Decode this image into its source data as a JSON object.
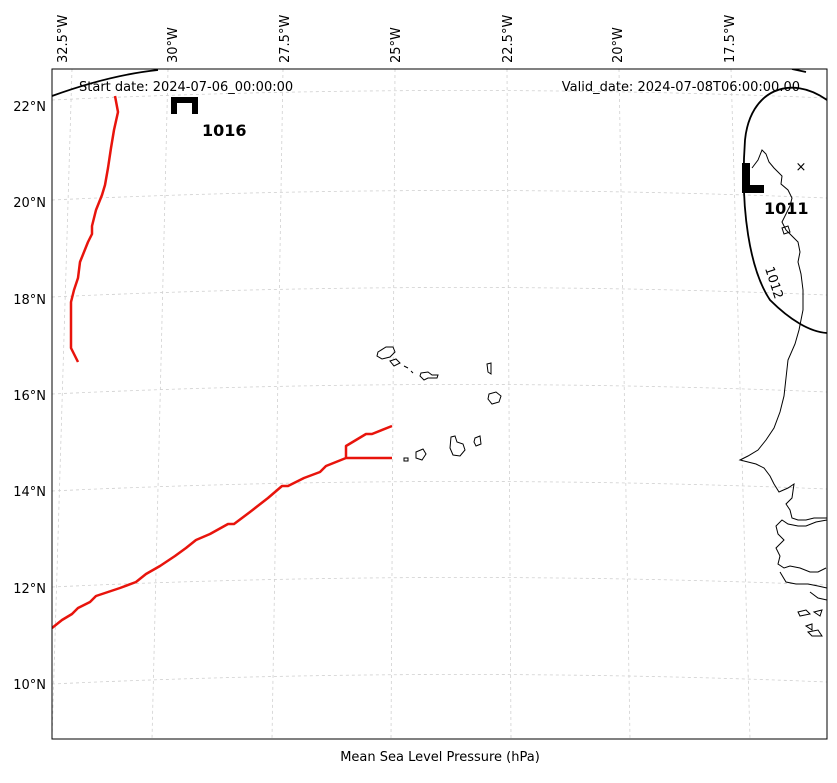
{
  "header": {
    "start_date": "Start date: 2024-07-06_00:00:00",
    "valid_date": "Valid_date: 2024-07-08T06:00:00.00"
  },
  "footer": {
    "caption": "Mean Sea Level Pressure (hPa)"
  },
  "axes": {
    "longitude_labels": [
      "32.5°W",
      "30°W",
      "27.5°W",
      "25°W",
      "22.5°W",
      "20°W",
      "17.5°W"
    ],
    "latitude_labels": [
      "22°N",
      "20°N",
      "18°N",
      "16°N",
      "14°N",
      "12°N",
      "10°N"
    ]
  },
  "pressure_systems": {
    "high": {
      "symbol": "H",
      "value": "1016"
    },
    "low": {
      "symbol": "L",
      "value": "1011"
    }
  },
  "isobars": [
    {
      "value": "1012"
    }
  ],
  "markers": {
    "low_center_marker": "×"
  }
}
